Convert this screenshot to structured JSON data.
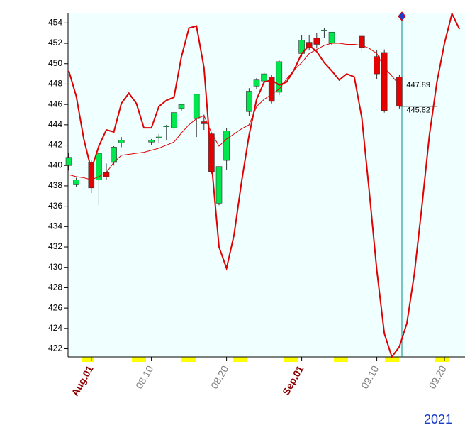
{
  "chart_data": {
    "type": "candlestick",
    "categories": [
      null,
      null,
      null,
      "Aug.01",
      null,
      null,
      null,
      null,
      null,
      null,
      null,
      "08.10",
      null,
      null,
      null,
      null,
      null,
      null,
      null,
      null,
      null,
      "08.20",
      null,
      null,
      null,
      null,
      null,
      null,
      null,
      null,
      null,
      "Sep.01",
      null,
      null,
      null,
      null,
      null,
      null,
      null,
      null,
      null,
      "09.10",
      null,
      null,
      null,
      null,
      null,
      null,
      null,
      null,
      "09.20",
      null,
      null
    ],
    "open": [
      440.0,
      438.1,
      null,
      440.3,
      438.6,
      439.3,
      440.3,
      442.2,
      null,
      null,
      null,
      442.3,
      442.7,
      443.8,
      443.7,
      445.6,
      null,
      444.6,
      444.3,
      443.1,
      436.3,
      440.5,
      null,
      null,
      445.3,
      447.8,
      448.3,
      448.7,
      447.2,
      null,
      null,
      451.0,
      452.1,
      452.5,
      453.3,
      452.0,
      null,
      null,
      null,
      452.7,
      null,
      450.7,
      451.1,
      null,
      448.7,
      null,
      null,
      null,
      null,
      null,
      null,
      null,
      null
    ],
    "high": [
      441.2,
      438.8,
      null,
      440.5,
      441.5,
      440.2,
      441.9,
      442.8,
      null,
      null,
      null,
      442.6,
      443.1,
      444.0,
      445.3,
      446.0,
      null,
      447.0,
      445.0,
      443.2,
      439.9,
      443.7,
      null,
      null,
      447.6,
      448.6,
      449.2,
      448.9,
      450.4,
      null,
      null,
      452.8,
      452.8,
      453.0,
      453.5,
      453.1,
      null,
      null,
      null,
      452.8,
      null,
      451.3,
      451.4,
      null,
      448.9,
      null,
      null,
      null,
      null,
      null,
      null,
      null,
      null
    ],
    "low": [
      439.5,
      437.9,
      null,
      437.3,
      436.1,
      438.6,
      440.0,
      441.8,
      null,
      null,
      null,
      442.0,
      442.2,
      442.5,
      443.5,
      445.4,
      null,
      442.8,
      443.5,
      439.2,
      436.1,
      439.6,
      null,
      null,
      444.9,
      447.5,
      448.0,
      446.1,
      446.9,
      null,
      null,
      450.7,
      451.3,
      451.5,
      452.5,
      451.8,
      null,
      null,
      null,
      451.2,
      null,
      448.5,
      445.2,
      null,
      445.6,
      null,
      null,
      null,
      null,
      null,
      null,
      null,
      null
    ],
    "close": [
      440.8,
      438.6,
      null,
      437.8,
      441.2,
      438.9,
      441.8,
      442.5,
      null,
      null,
      null,
      442.5,
      442.8,
      443.9,
      445.2,
      446.0,
      null,
      447.0,
      444.1,
      439.4,
      439.9,
      443.4,
      null,
      null,
      447.3,
      448.4,
      449.0,
      446.3,
      450.2,
      null,
      null,
      452.3,
      451.6,
      451.9,
      453.3,
      453.1,
      null,
      null,
      null,
      451.6,
      null,
      449.0,
      445.4,
      null,
      445.82,
      null,
      null,
      null,
      null,
      null,
      null,
      null,
      null
    ],
    "up_color": "#00e64d",
    "down_color": "#e60000",
    "lines": [
      {
        "color": "#e00000",
        "width": 2,
        "values": [
          449.3,
          446.8,
          442.6,
          439.6,
          441.9,
          443.5,
          443.3,
          446.1,
          447.1,
          446.1,
          443.7,
          443.7,
          445.8,
          446.4,
          446.7,
          450.7,
          453.5,
          453.7,
          449.6,
          440.2,
          432.0,
          429.9,
          433.2,
          438.4,
          443.0,
          446.5,
          448.2,
          448.4,
          447.9,
          448.2,
          449.4,
          451.0,
          451.8,
          451.2,
          450.1,
          449.3,
          448.4,
          449.0,
          448.7,
          444.7,
          437.4,
          429.7,
          423.5,
          421.2,
          422.2,
          424.5,
          429.4,
          436.0,
          443.0,
          448.2,
          452.0,
          454.9,
          453.4
        ]
      },
      {
        "color": "#e00000",
        "width": 1,
        "values": [
          439.1,
          438.9,
          438.8,
          438.6,
          438.9,
          439.3,
          440.3,
          441.0,
          441.1,
          441.2,
          441.3,
          441.5,
          441.7,
          442.0,
          442.3,
          443.2,
          444.0,
          444.6,
          444.9,
          443.2,
          441.9,
          442.6,
          443.1,
          443.6,
          444.0,
          445.8,
          446.5,
          447.0,
          447.5,
          448.5,
          449.4,
          450.1,
          451.0,
          451.4,
          451.8,
          452.0,
          452.0,
          451.9,
          451.9,
          451.8,
          451.5,
          451.0,
          449.6,
          448.8,
          447.89,
          null,
          null,
          null,
          null,
          null,
          null,
          null,
          null
        ]
      }
    ],
    "price_labels": [
      447.89,
      445.82
    ],
    "ylim": [
      421.2,
      455
    ],
    "yticks": [
      422,
      424,
      426,
      428,
      430,
      432,
      434,
      436,
      438,
      440,
      442,
      444,
      446,
      448,
      450,
      452,
      454
    ],
    "month_label_color": "#8b0000",
    "day_label_color": "#808080",
    "year_label": "2021"
  }
}
